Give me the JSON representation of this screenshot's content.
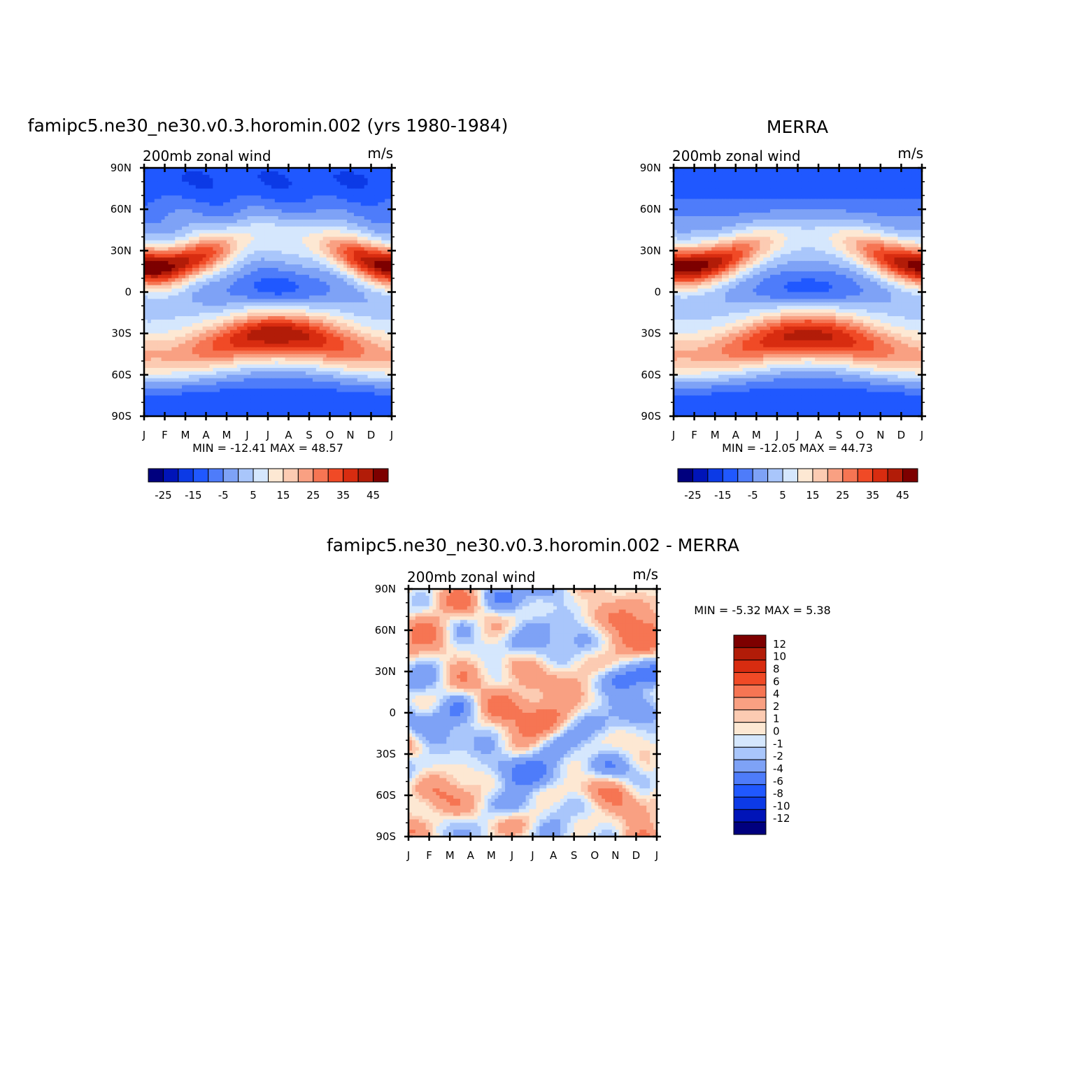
{
  "palette": {
    "wind": [
      "#00007e",
      "#0014b8",
      "#0c3ae6",
      "#2058ff",
      "#4e7cfa",
      "#7ea2f6",
      "#a9c6fb",
      "#d5e7fd",
      "#fde8d3",
      "#fccbb2",
      "#f9a082",
      "#f67553",
      "#f04a26",
      "#d82c10",
      "#b21c08",
      "#7d0000"
    ],
    "diff": [
      "#7d0000",
      "#b21c08",
      "#d82c10",
      "#f04a26",
      "#f67553",
      "#f9a082",
      "#fccbb2",
      "#fde8d3",
      "#d5e7fd",
      "#a9c6fb",
      "#7ea2f6",
      "#4e7cfa",
      "#2058ff",
      "#0c3ae6",
      "#0014b8",
      "#00007e"
    ]
  },
  "chart_data": [
    {
      "type": "heatmap",
      "title": "famipc5.ne30_ne30.v0.3.horomin.002 (yrs 1980-1984)",
      "left_label": "200mb zonal wind",
      "units": "m/s",
      "x_ticks": [
        "J",
        "F",
        "M",
        "A",
        "M",
        "J",
        "J",
        "A",
        "S",
        "O",
        "N",
        "D",
        "J"
      ],
      "y_ticks": [
        "90N",
        "60N",
        "30N",
        "0",
        "30S",
        "60S",
        "90S"
      ],
      "min": -12.41,
      "max": 48.57,
      "minmax_label": "MIN = -12.41 MAX = 48.57",
      "colorbar_labels": [
        "-25",
        "-15",
        "-5",
        "5",
        "15",
        "25",
        "35",
        "45"
      ],
      "field": "model"
    },
    {
      "type": "heatmap",
      "title": "MERRA",
      "left_label": "200mb zonal wind",
      "units": "m/s",
      "x_ticks": [
        "J",
        "F",
        "M",
        "A",
        "M",
        "J",
        "J",
        "A",
        "S",
        "O",
        "N",
        "D",
        "J"
      ],
      "y_ticks": [
        "90N",
        "60N",
        "30N",
        "0",
        "30S",
        "60S",
        "90S"
      ],
      "min": -12.05,
      "max": 44.73,
      "minmax_label": "MIN = -12.05 MAX = 44.73",
      "colorbar_labels": [
        "-25",
        "-15",
        "-5",
        "5",
        "15",
        "25",
        "35",
        "45"
      ],
      "field": "obs"
    },
    {
      "type": "heatmap",
      "title": "famipc5.ne30_ne30.v0.3.horomin.002 - MERRA",
      "left_label": "200mb zonal wind",
      "units": "m/s",
      "x_ticks": [
        "J",
        "F",
        "M",
        "A",
        "M",
        "J",
        "J",
        "A",
        "S",
        "O",
        "N",
        "D",
        "J"
      ],
      "y_ticks": [
        "90N",
        "60N",
        "30N",
        "0",
        "30S",
        "60S",
        "90S"
      ],
      "min": -5.32,
      "max": 5.38,
      "minmax_label": "MIN = -5.32 MAX = 5.38",
      "colorbar_labels": [
        "12",
        "10",
        "8",
        "6",
        "4",
        "2",
        "1",
        "0",
        "-1",
        "-2",
        "-4",
        "-6",
        "-8",
        "-10",
        "-12"
      ],
      "field": "diff"
    }
  ]
}
